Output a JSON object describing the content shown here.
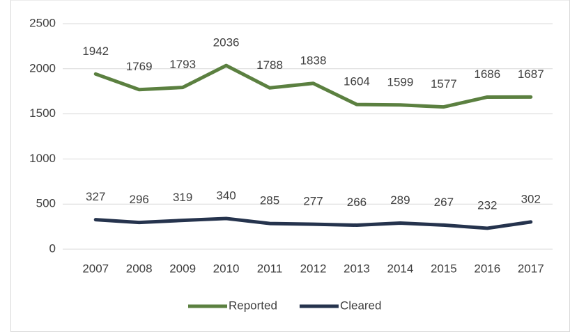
{
  "chart_data": {
    "type": "line",
    "categories": [
      "2007",
      "2008",
      "2009",
      "2010",
      "2011",
      "2012",
      "2013",
      "2014",
      "2015",
      "2016",
      "2017"
    ],
    "series": [
      {
        "name": "Reported",
        "color": "#5b8040",
        "values": [
          1942,
          1769,
          1793,
          2036,
          1788,
          1838,
          1604,
          1599,
          1577,
          1686,
          1687
        ]
      },
      {
        "name": "Cleared",
        "color": "#25334d",
        "values": [
          327,
          296,
          319,
          340,
          285,
          277,
          266,
          289,
          267,
          232,
          302
        ]
      }
    ],
    "ylim": [
      0,
      2500
    ],
    "yticks": [
      0,
      500,
      1000,
      1500,
      2000,
      2500
    ],
    "grid": true,
    "legend": "bottom",
    "data_labels": true
  }
}
